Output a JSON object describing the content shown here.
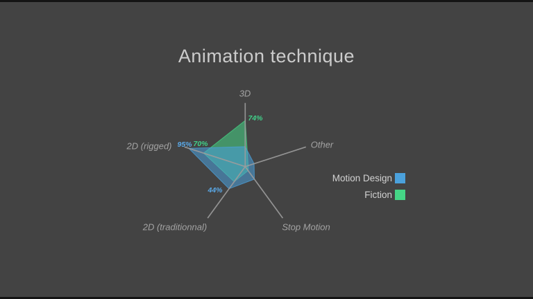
{
  "title": "Animation technique",
  "chart_data": {
    "type": "radar",
    "axes": [
      "3D",
      "Other",
      "Stop Motion",
      "2D (traditionnal)",
      "2D (rigged)"
    ],
    "max": 100,
    "unit": "%",
    "grid": false,
    "legend_position": "right",
    "axis_line_color": "#9c9c9c",
    "axis_label_color": "#a3a3a3",
    "series": [
      {
        "name": "Fiction",
        "color": "#45d586",
        "fill_opacity": 0.55,
        "values": [
          74,
          5,
          8,
          30,
          70
        ]
      },
      {
        "name": "Motion Design",
        "color": "#4ba1dc",
        "fill_opacity": 0.55,
        "values": [
          32,
          15,
          25,
          44,
          95
        ]
      }
    ],
    "labeled_points": [
      {
        "text": "95%",
        "series": "Motion Design",
        "axis": "2D (rigged)",
        "value": 95,
        "color": "#5aa9e8"
      },
      {
        "text": "70%",
        "series": "Fiction",
        "axis": "2D (rigged)",
        "value": 70,
        "color": "#41d089"
      },
      {
        "text": "74%",
        "series": "Fiction",
        "axis": "3D",
        "value": 74,
        "color": "#41d089"
      },
      {
        "text": "44%",
        "series": "Motion Design",
        "axis": "2D (traditionnal)",
        "value": 44,
        "color": "#5aa9e8"
      }
    ]
  },
  "legend": {
    "items": [
      {
        "label": "Motion Design",
        "color": "#4ba1dc"
      },
      {
        "label": "Fiction",
        "color": "#45d586"
      }
    ]
  },
  "colors": {
    "background": "#434343",
    "title": "#cccccc",
    "frame_bar": "#141414"
  }
}
